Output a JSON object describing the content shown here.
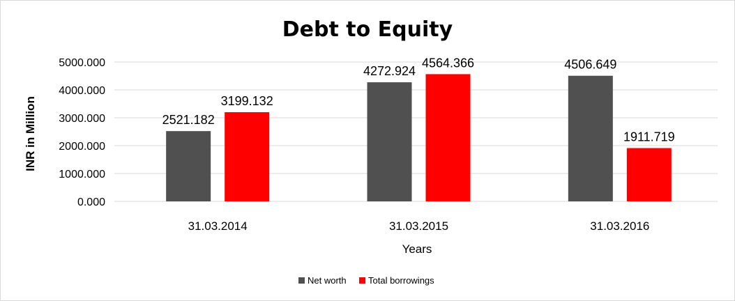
{
  "chart_data": {
    "type": "bar",
    "title": "Debt to Equity",
    "xlabel": "Years",
    "ylabel": "INR in Million",
    "categories": [
      "31.03.2014",
      "31.03.2015",
      "31.03.2016"
    ],
    "series": [
      {
        "name": "Net worth",
        "color": "#505050",
        "values": [
          2521.182,
          4272.924,
          4506.649
        ],
        "labels": [
          "2521.182",
          "4272.924",
          "4506.649"
        ]
      },
      {
        "name": "Total borrowings",
        "color": "#ff0000",
        "values": [
          3199.132,
          4564.366,
          1911.719
        ],
        "labels": [
          "3199.132",
          "4564.366",
          "1911.719"
        ]
      }
    ],
    "yticks": [
      {
        "value": 0,
        "label": "0.000"
      },
      {
        "value": 1000,
        "label": "1000.000"
      },
      {
        "value": 2000,
        "label": "2000.000"
      },
      {
        "value": 3000,
        "label": "3000.000"
      },
      {
        "value": 4000,
        "label": "4000.000"
      },
      {
        "value": 5000,
        "label": "5000.000"
      }
    ],
    "ylim": [
      0,
      5000
    ],
    "grid": true,
    "legend_position": "bottom",
    "gridline_color": "#d9d9d9"
  }
}
